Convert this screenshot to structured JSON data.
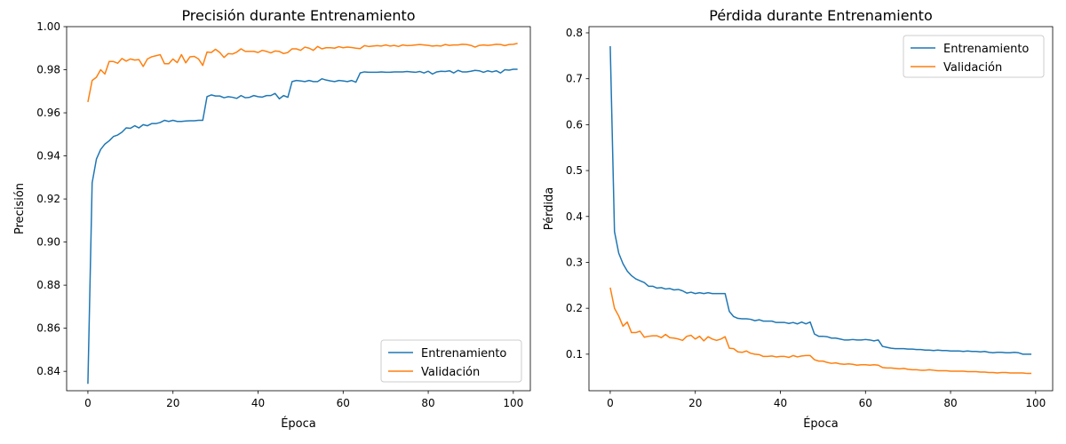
{
  "chart_data": [
    {
      "type": "line",
      "title": "Precisión durante Entrenamiento",
      "xlabel": "Época",
      "ylabel": "Precisión",
      "xlim": [
        -5,
        104
      ],
      "ylim": [
        0.831,
        1.0
      ],
      "xticks": [
        0,
        20,
        40,
        60,
        80,
        100
      ],
      "yticks": [
        0.84,
        0.86,
        0.88,
        0.9,
        0.92,
        0.94,
        0.96,
        0.98,
        1.0
      ],
      "ytick_labels": [
        "0.84",
        "0.86",
        "0.88",
        "0.90",
        "0.92",
        "0.94",
        "0.96",
        "0.98",
        "1.00"
      ],
      "xtick_labels": [
        "0",
        "20",
        "40",
        "60",
        "80",
        "100"
      ],
      "legend_position": "lower-right",
      "grid": false,
      "series": [
        {
          "name": "Entrenamiento",
          "color": "#1f77b4",
          "values": [
            0.8342,
            0.9275,
            0.9385,
            0.943,
            0.9455,
            0.947,
            0.949,
            0.9497,
            0.951,
            0.953,
            0.9528,
            0.954,
            0.953,
            0.9545,
            0.954,
            0.955,
            0.955,
            0.9555,
            0.9565,
            0.956,
            0.9565,
            0.956,
            0.956,
            0.9562,
            0.9563,
            0.9563,
            0.9565,
            0.9565,
            0.9675,
            0.9683,
            0.9678,
            0.9678,
            0.967,
            0.9675,
            0.9672,
            0.9667,
            0.968,
            0.967,
            0.9672,
            0.968,
            0.9675,
            0.9673,
            0.968,
            0.968,
            0.969,
            0.9665,
            0.968,
            0.9672,
            0.9745,
            0.975,
            0.9748,
            0.9745,
            0.975,
            0.9745,
            0.9745,
            0.9758,
            0.9752,
            0.9748,
            0.9745,
            0.975,
            0.9748,
            0.9745,
            0.975,
            0.9742,
            0.9785,
            0.979,
            0.9788,
            0.9788,
            0.9788,
            0.979,
            0.9788,
            0.9788,
            0.979,
            0.979,
            0.979,
            0.9792,
            0.979,
            0.9788,
            0.9792,
            0.9785,
            0.9793,
            0.978,
            0.979,
            0.9793,
            0.9792,
            0.9795,
            0.9785,
            0.9797,
            0.979,
            0.979,
            0.9793,
            0.9797,
            0.9795,
            0.9788,
            0.9795,
            0.979,
            0.9795,
            0.9785,
            0.98,
            0.9798,
            0.9802,
            0.9802
          ]
        },
        {
          "name": "Validación",
          "color": "#ff7f0e",
          "values": [
            0.965,
            0.975,
            0.9765,
            0.98,
            0.978,
            0.9838,
            0.9838,
            0.983,
            0.9852,
            0.984,
            0.985,
            0.9845,
            0.9847,
            0.9815,
            0.985,
            0.986,
            0.9865,
            0.987,
            0.9828,
            0.9828,
            0.985,
            0.9833,
            0.987,
            0.9832,
            0.986,
            0.9862,
            0.985,
            0.982,
            0.9882,
            0.988,
            0.9895,
            0.988,
            0.9857,
            0.9875,
            0.9873,
            0.9882,
            0.9897,
            0.9885,
            0.9885,
            0.9885,
            0.988,
            0.989,
            0.9885,
            0.9878,
            0.9887,
            0.9885,
            0.9875,
            0.988,
            0.9897,
            0.9897,
            0.989,
            0.9905,
            0.99,
            0.989,
            0.9908,
            0.9897,
            0.9902,
            0.9902,
            0.99,
            0.9907,
            0.9902,
            0.9905,
            0.9903,
            0.99,
            0.9898,
            0.9912,
            0.9908,
            0.991,
            0.9912,
            0.991,
            0.9915,
            0.991,
            0.9913,
            0.9908,
            0.9915,
            0.9912,
            0.9913,
            0.9915,
            0.9917,
            0.9915,
            0.9913,
            0.991,
            0.9912,
            0.991,
            0.9917,
            0.9913,
            0.9915,
            0.9915,
            0.9918,
            0.9917,
            0.9913,
            0.9905,
            0.9913,
            0.9915,
            0.9913,
            0.9915,
            0.9918,
            0.9917,
            0.9912,
            0.9917,
            0.9918,
            0.9922
          ]
        }
      ]
    },
    {
      "type": "line",
      "title": "Pérdida durante Entrenamiento",
      "xlabel": "Época",
      "ylabel": "Pérdida",
      "xlim": [
        -5,
        104
      ],
      "ylim": [
        0.0204,
        0.8135
      ],
      "xticks": [
        0,
        20,
        40,
        60,
        80,
        100
      ],
      "yticks": [
        0.1,
        0.2,
        0.3,
        0.4,
        0.5,
        0.6,
        0.7,
        0.8
      ],
      "ytick_labels": [
        "0.1",
        "0.2",
        "0.3",
        "0.4",
        "0.5",
        "0.6",
        "0.7",
        "0.8"
      ],
      "xtick_labels": [
        "0",
        "20",
        "40",
        "60",
        "80",
        "100"
      ],
      "legend_position": "upper-right",
      "grid": false,
      "series": [
        {
          "name": "Entrenamiento",
          "color": "#1f77b4",
          "values": [
            0.771,
            0.367,
            0.32,
            0.297,
            0.281,
            0.271,
            0.264,
            0.26,
            0.256,
            0.248,
            0.248,
            0.244,
            0.245,
            0.242,
            0.243,
            0.24,
            0.241,
            0.238,
            0.233,
            0.235,
            0.232,
            0.234,
            0.232,
            0.234,
            0.232,
            0.232,
            0.232,
            0.232,
            0.193,
            0.182,
            0.178,
            0.177,
            0.177,
            0.176,
            0.173,
            0.175,
            0.172,
            0.172,
            0.172,
            0.169,
            0.169,
            0.169,
            0.167,
            0.169,
            0.166,
            0.17,
            0.166,
            0.17,
            0.144,
            0.139,
            0.139,
            0.138,
            0.135,
            0.135,
            0.133,
            0.131,
            0.131,
            0.132,
            0.131,
            0.131,
            0.132,
            0.131,
            0.129,
            0.131,
            0.117,
            0.115,
            0.113,
            0.112,
            0.112,
            0.112,
            0.111,
            0.111,
            0.11,
            0.11,
            0.109,
            0.109,
            0.108,
            0.109,
            0.108,
            0.108,
            0.107,
            0.107,
            0.107,
            0.106,
            0.107,
            0.106,
            0.106,
            0.105,
            0.106,
            0.104,
            0.103,
            0.104,
            0.104,
            0.103,
            0.103,
            0.104,
            0.103,
            0.1,
            0.1,
            0.1
          ]
        },
        {
          "name": "Validación",
          "color": "#ff7f0e",
          "values": [
            0.245,
            0.2,
            0.183,
            0.161,
            0.17,
            0.147,
            0.147,
            0.15,
            0.137,
            0.139,
            0.14,
            0.14,
            0.136,
            0.143,
            0.136,
            0.135,
            0.133,
            0.13,
            0.139,
            0.141,
            0.133,
            0.139,
            0.129,
            0.138,
            0.133,
            0.13,
            0.133,
            0.138,
            0.113,
            0.112,
            0.105,
            0.104,
            0.107,
            0.102,
            0.1,
            0.099,
            0.095,
            0.095,
            0.096,
            0.094,
            0.095,
            0.095,
            0.093,
            0.097,
            0.094,
            0.096,
            0.097,
            0.097,
            0.088,
            0.085,
            0.085,
            0.082,
            0.08,
            0.081,
            0.079,
            0.078,
            0.079,
            0.078,
            0.076,
            0.077,
            0.077,
            0.076,
            0.077,
            0.076,
            0.071,
            0.07,
            0.07,
            0.069,
            0.068,
            0.069,
            0.067,
            0.066,
            0.066,
            0.065,
            0.065,
            0.066,
            0.065,
            0.064,
            0.064,
            0.064,
            0.063,
            0.063,
            0.063,
            0.063,
            0.062,
            0.062,
            0.062,
            0.061,
            0.061,
            0.06,
            0.06,
            0.059,
            0.06,
            0.06,
            0.059,
            0.059,
            0.059,
            0.059,
            0.058,
            0.058
          ]
        }
      ]
    }
  ]
}
